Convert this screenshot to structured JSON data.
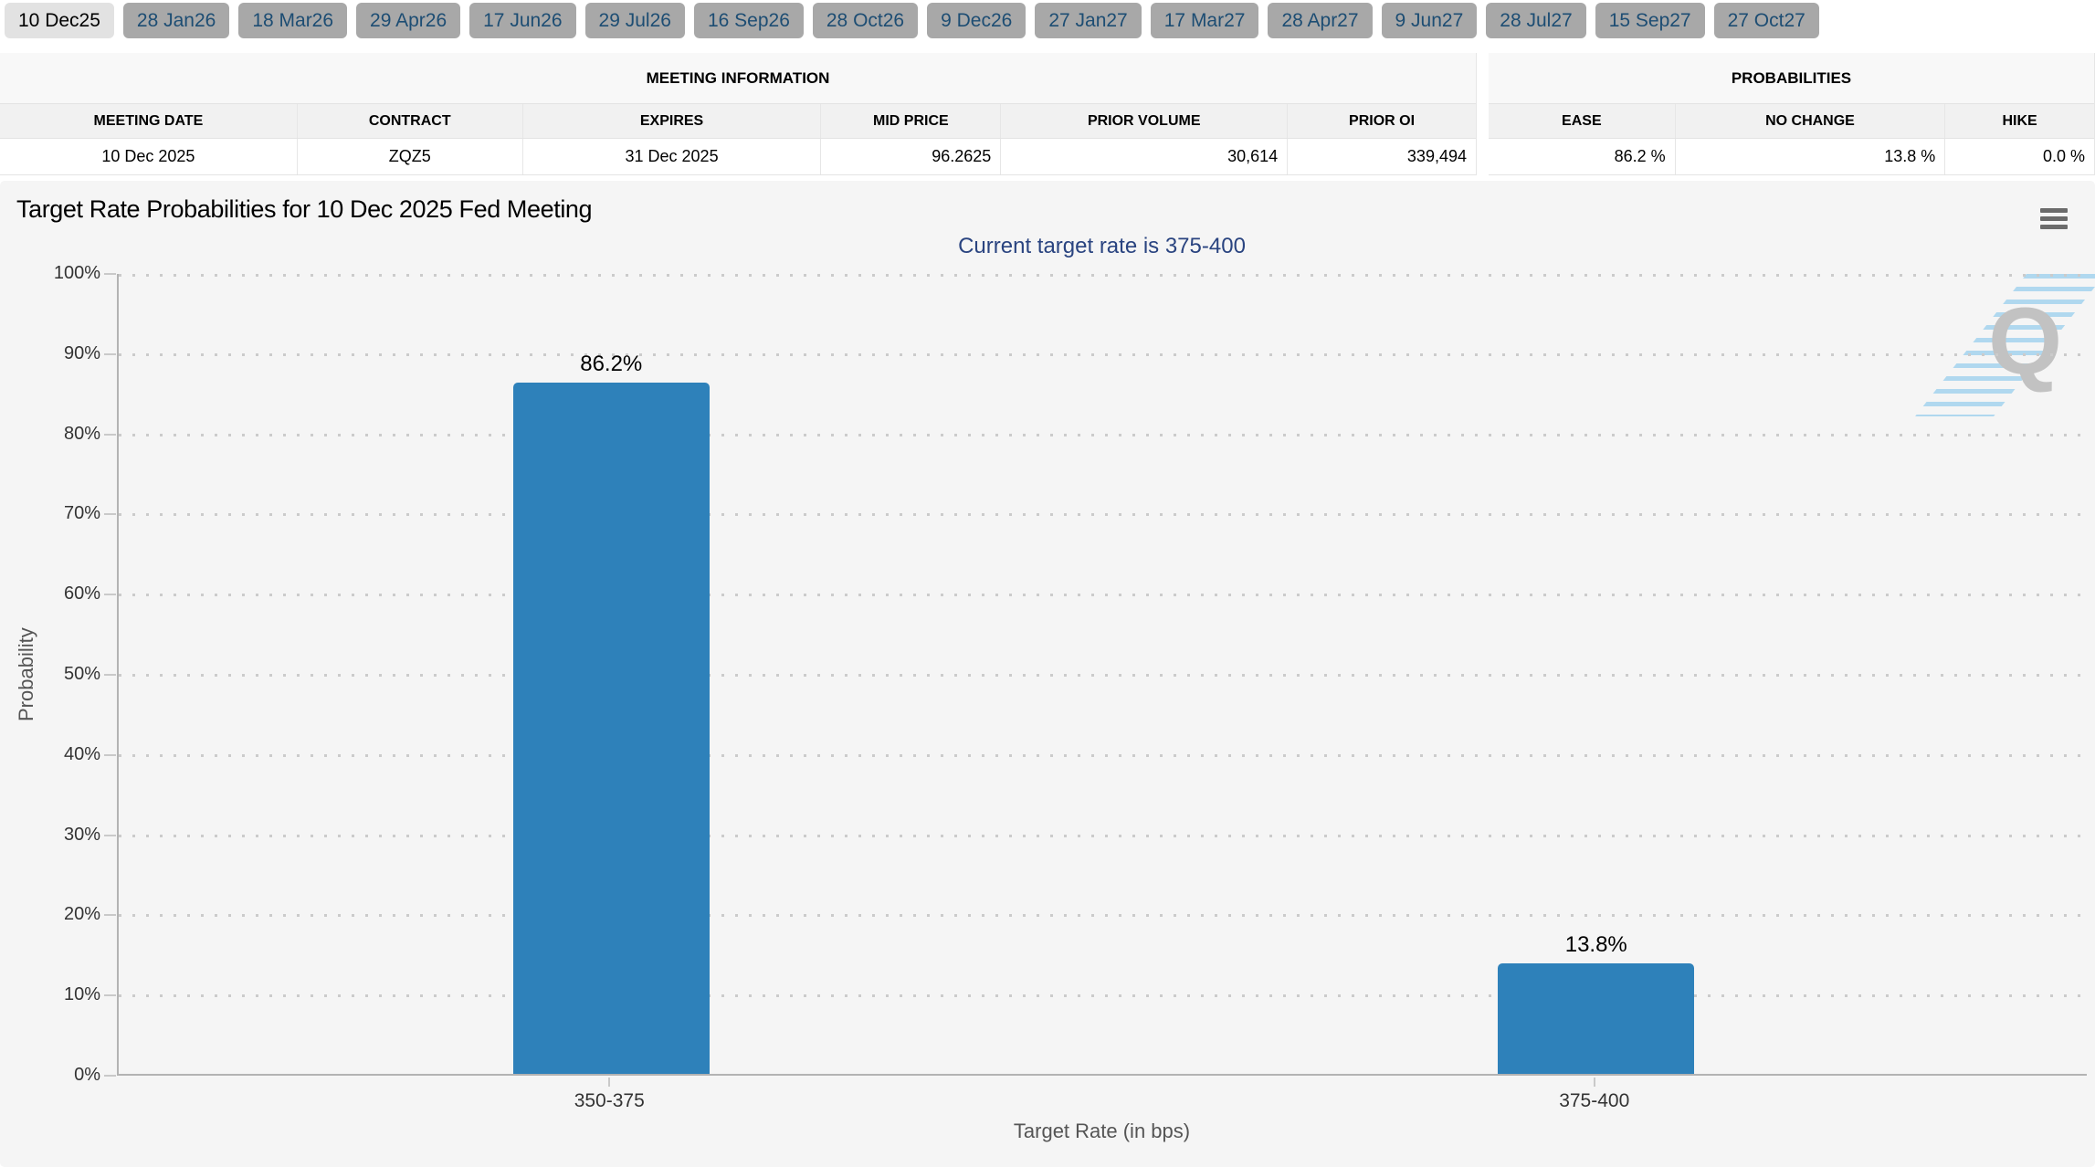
{
  "tabs": {
    "items": [
      {
        "label": "10 Dec25",
        "selected": true
      },
      {
        "label": "28 Jan26",
        "selected": false
      },
      {
        "label": "18 Mar26",
        "selected": false
      },
      {
        "label": "29 Apr26",
        "selected": false
      },
      {
        "label": "17 Jun26",
        "selected": false
      },
      {
        "label": "29 Jul26",
        "selected": false
      },
      {
        "label": "16 Sep26",
        "selected": false
      },
      {
        "label": "28 Oct26",
        "selected": false
      },
      {
        "label": "9 Dec26",
        "selected": false
      },
      {
        "label": "27 Jan27",
        "selected": false
      },
      {
        "label": "17 Mar27",
        "selected": false
      },
      {
        "label": "28 Apr27",
        "selected": false
      },
      {
        "label": "9 Jun27",
        "selected": false
      },
      {
        "label": "28 Jul27",
        "selected": false
      },
      {
        "label": "15 Sep27",
        "selected": false
      },
      {
        "label": "27 Oct27",
        "selected": false
      }
    ]
  },
  "meeting_information": {
    "section_title": "MEETING INFORMATION",
    "columns": [
      "MEETING DATE",
      "CONTRACT",
      "EXPIRES",
      "MID PRICE",
      "PRIOR VOLUME",
      "PRIOR OI"
    ],
    "row": {
      "meeting_date": "10 Dec 2025",
      "contract": "ZQZ5",
      "expires": "31 Dec 2025",
      "mid_price": "96.2625",
      "prior_volume": "30,614",
      "prior_oi": "339,494"
    }
  },
  "probabilities": {
    "section_title": "PROBABILITIES",
    "columns": [
      "EASE",
      "NO CHANGE",
      "HIKE"
    ],
    "row": {
      "ease": "86.2 %",
      "no_change": "13.8 %",
      "hike": "0.0 %"
    }
  },
  "chart": {
    "title": "Target Rate Probabilities for 10 Dec 2025 Fed Meeting",
    "subtitle": "Current target rate is 375-400",
    "menu_icon": "hamburger-menu-icon",
    "watermark_letter": "Q"
  },
  "chart_data": {
    "type": "bar",
    "categories": [
      "350-375",
      "375-400"
    ],
    "values": [
      86.2,
      13.8
    ],
    "value_labels": [
      "86.2%",
      "13.8%"
    ],
    "title": "Target Rate Probabilities for 10 Dec 2025 Fed Meeting",
    "subtitle": "Current target rate is 375-400",
    "xlabel": "Target Rate (in bps)",
    "ylabel": "Probability",
    "ylim": [
      0,
      100
    ],
    "ytick_step": 10,
    "ytick_suffix": "%",
    "grid": "dotted horizontal",
    "legend": "none",
    "bar_color": "#2e81ba"
  },
  "colors": {
    "bar": "#2e81ba",
    "subtitle_text": "#2a4480",
    "tab_selected_bg": "#e2e2e2",
    "tab_bg": "#a8a8a8",
    "tab_text": "#1d4d73",
    "chart_bg": "#f5f5f5",
    "grid_dot": "#cbcbcb",
    "axis_line": "#b3b3b3"
  }
}
